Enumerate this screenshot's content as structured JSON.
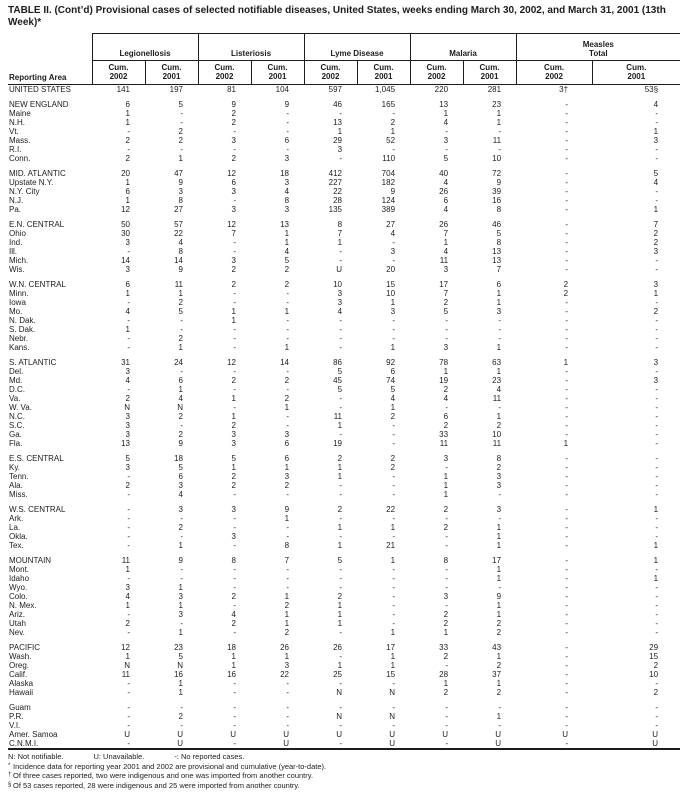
{
  "title": "TABLE II. (Cont’d) Provisional cases of selected notifiable diseases, United States, weeks ending March 30, 2002, and March 31, 2001 (13th Week)*",
  "table": {
    "area_header": "Reporting Area",
    "cum_2002": "Cum.\n2002",
    "cum_2001": "Cum.\n2001",
    "groups": [
      {
        "label": "Legionellosis"
      },
      {
        "label": "Listeriosis"
      },
      {
        "label": "Lyme Disease"
      },
      {
        "label": "Malaria"
      },
      {
        "label": "Measles\nTotal"
      }
    ],
    "rows": [
      {
        "area": "UNITED STATES",
        "gap": false,
        "values": [
          "141",
          "197",
          "81",
          "104",
          "597",
          "1,045",
          "220",
          "281",
          "3†",
          "53§"
        ]
      },
      {
        "area": "NEW ENGLAND",
        "gap": true,
        "values": [
          "6",
          "5",
          "9",
          "9",
          "46",
          "165",
          "13",
          "23",
          "-",
          "4"
        ]
      },
      {
        "area": "Maine",
        "gap": false,
        "values": [
          "1",
          "-",
          "2",
          "-",
          "-",
          "-",
          "1",
          "1",
          "-",
          "-"
        ]
      },
      {
        "area": "N.H.",
        "gap": false,
        "values": [
          "1",
          "-",
          "2",
          "-",
          "13",
          "2",
          "4",
          "1",
          "-",
          "-"
        ]
      },
      {
        "area": "Vt.",
        "gap": false,
        "values": [
          "-",
          "2",
          "-",
          "-",
          "1",
          "1",
          "-",
          "-",
          "-",
          "1"
        ]
      },
      {
        "area": "Mass.",
        "gap": false,
        "values": [
          "2",
          "2",
          "3",
          "6",
          "29",
          "52",
          "3",
          "11",
          "-",
          "3"
        ]
      },
      {
        "area": "R.I.",
        "gap": false,
        "values": [
          "-",
          "-",
          "-",
          "-",
          "3",
          "-",
          "-",
          "-",
          "-",
          "-"
        ]
      },
      {
        "area": "Conn.",
        "gap": false,
        "values": [
          "2",
          "1",
          "2",
          "3",
          "-",
          "110",
          "5",
          "10",
          "-",
          "-"
        ]
      },
      {
        "area": "MID. ATLANTIC",
        "gap": true,
        "values": [
          "20",
          "47",
          "12",
          "18",
          "412",
          "704",
          "40",
          "72",
          "-",
          "5"
        ]
      },
      {
        "area": "Upstate N.Y.",
        "gap": false,
        "values": [
          "1",
          "9",
          "6",
          "3",
          "227",
          "182",
          "4",
          "9",
          "-",
          "4"
        ]
      },
      {
        "area": "N.Y. City",
        "gap": false,
        "values": [
          "6",
          "3",
          "3",
          "4",
          "22",
          "9",
          "26",
          "39",
          "-",
          "-"
        ]
      },
      {
        "area": "N.J.",
        "gap": false,
        "values": [
          "1",
          "8",
          "-",
          "8",
          "28",
          "124",
          "6",
          "16",
          "-",
          "-"
        ]
      },
      {
        "area": "Pa.",
        "gap": false,
        "values": [
          "12",
          "27",
          "3",
          "3",
          "135",
          "389",
          "4",
          "8",
          "-",
          "1"
        ]
      },
      {
        "area": "E.N. CENTRAL",
        "gap": true,
        "values": [
          "50",
          "57",
          "12",
          "13",
          "8",
          "27",
          "26",
          "46",
          "-",
          "7"
        ]
      },
      {
        "area": "Ohio",
        "gap": false,
        "values": [
          "30",
          "22",
          "7",
          "1",
          "7",
          "4",
          "7",
          "5",
          "-",
          "2"
        ]
      },
      {
        "area": "Ind.",
        "gap": false,
        "values": [
          "3",
          "4",
          "-",
          "1",
          "1",
          "-",
          "1",
          "8",
          "-",
          "2"
        ]
      },
      {
        "area": "Ill.",
        "gap": false,
        "values": [
          "-",
          "8",
          "-",
          "4",
          "-",
          "3",
          "4",
          "13",
          "-",
          "3"
        ]
      },
      {
        "area": "Mich.",
        "gap": false,
        "values": [
          "14",
          "14",
          "3",
          "5",
          "-",
          "-",
          "11",
          "13",
          "-",
          "-"
        ]
      },
      {
        "area": "Wis.",
        "gap": false,
        "values": [
          "3",
          "9",
          "2",
          "2",
          "U",
          "20",
          "3",
          "7",
          "-",
          "-"
        ]
      },
      {
        "area": "W.N. CENTRAL",
        "gap": true,
        "values": [
          "6",
          "11",
          "2",
          "2",
          "10",
          "15",
          "17",
          "6",
          "2",
          "3"
        ]
      },
      {
        "area": "Minn.",
        "gap": false,
        "values": [
          "1",
          "1",
          "-",
          "-",
          "3",
          "10",
          "7",
          "1",
          "2",
          "1"
        ]
      },
      {
        "area": "Iowa",
        "gap": false,
        "values": [
          "-",
          "2",
          "-",
          "-",
          "3",
          "1",
          "2",
          "1",
          "-",
          "-"
        ]
      },
      {
        "area": "Mo.",
        "gap": false,
        "values": [
          "4",
          "5",
          "1",
          "1",
          "4",
          "3",
          "5",
          "3",
          "-",
          "2"
        ]
      },
      {
        "area": "N. Dak.",
        "gap": false,
        "values": [
          "-",
          "-",
          "1",
          "-",
          "-",
          "-",
          "-",
          "-",
          "-",
          "-"
        ]
      },
      {
        "area": "S. Dak.",
        "gap": false,
        "values": [
          "1",
          "-",
          "-",
          "-",
          "-",
          "-",
          "-",
          "-",
          "-",
          "-"
        ]
      },
      {
        "area": "Nebr.",
        "gap": false,
        "values": [
          "-",
          "2",
          "-",
          "-",
          "-",
          "-",
          "-",
          "-",
          "-",
          "-"
        ]
      },
      {
        "area": "Kans.",
        "gap": false,
        "values": [
          "-",
          "1",
          "-",
          "1",
          "-",
          "1",
          "3",
          "1",
          "-",
          "-"
        ]
      },
      {
        "area": "S. ATLANTIC",
        "gap": true,
        "values": [
          "31",
          "24",
          "12",
          "14",
          "86",
          "92",
          "78",
          "63",
          "1",
          "3"
        ]
      },
      {
        "area": "Del.",
        "gap": false,
        "values": [
          "3",
          "-",
          "-",
          "-",
          "5",
          "6",
          "1",
          "1",
          "-",
          "-"
        ]
      },
      {
        "area": "Md.",
        "gap": false,
        "values": [
          "4",
          "6",
          "2",
          "2",
          "45",
          "74",
          "19",
          "23",
          "-",
          "3"
        ]
      },
      {
        "area": "D.C.",
        "gap": false,
        "values": [
          "-",
          "1",
          "-",
          "-",
          "5",
          "5",
          "2",
          "4",
          "-",
          "-"
        ]
      },
      {
        "area": "Va.",
        "gap": false,
        "values": [
          "2",
          "4",
          "1",
          "2",
          "-",
          "4",
          "4",
          "11",
          "-",
          "-"
        ]
      },
      {
        "area": "W. Va.",
        "gap": false,
        "values": [
          "N",
          "N",
          "-",
          "1",
          "-",
          "1",
          "-",
          "-",
          "-",
          "-"
        ]
      },
      {
        "area": "N.C.",
        "gap": false,
        "values": [
          "3",
          "2",
          "1",
          "-",
          "11",
          "2",
          "6",
          "1",
          "-",
          "-"
        ]
      },
      {
        "area": "S.C.",
        "gap": false,
        "values": [
          "3",
          "-",
          "2",
          "-",
          "1",
          "-",
          "2",
          "2",
          "-",
          "-"
        ]
      },
      {
        "area": "Ga.",
        "gap": false,
        "values": [
          "3",
          "2",
          "3",
          "3",
          "-",
          "-",
          "33",
          "10",
          "-",
          "-"
        ]
      },
      {
        "area": "Fla.",
        "gap": false,
        "values": [
          "13",
          "9",
          "3",
          "6",
          "19",
          "-",
          "11",
          "11",
          "1",
          "-"
        ]
      },
      {
        "area": "E.S. CENTRAL",
        "gap": true,
        "values": [
          "5",
          "18",
          "5",
          "6",
          "2",
          "2",
          "3",
          "8",
          "-",
          "-"
        ]
      },
      {
        "area": "Ky.",
        "gap": false,
        "values": [
          "3",
          "5",
          "1",
          "1",
          "1",
          "2",
          "-",
          "2",
          "-",
          "-"
        ]
      },
      {
        "area": "Tenn.",
        "gap": false,
        "values": [
          "-",
          "6",
          "2",
          "3",
          "1",
          "-",
          "1",
          "3",
          "-",
          "-"
        ]
      },
      {
        "area": "Ala.",
        "gap": false,
        "values": [
          "2",
          "3",
          "2",
          "2",
          "-",
          "-",
          "1",
          "3",
          "-",
          "-"
        ]
      },
      {
        "area": "Miss.",
        "gap": false,
        "values": [
          "-",
          "4",
          "-",
          "-",
          "-",
          "-",
          "1",
          "-",
          "-",
          "-"
        ]
      },
      {
        "area": "W.S. CENTRAL",
        "gap": true,
        "values": [
          "-",
          "3",
          "3",
          "9",
          "2",
          "22",
          "2",
          "3",
          "-",
          "1"
        ]
      },
      {
        "area": "Ark.",
        "gap": false,
        "values": [
          "-",
          "-",
          "-",
          "1",
          "-",
          "-",
          "-",
          "-",
          "-",
          "-"
        ]
      },
      {
        "area": "La.",
        "gap": false,
        "values": [
          "-",
          "2",
          "-",
          "-",
          "1",
          "1",
          "2",
          "1",
          "-",
          "-"
        ]
      },
      {
        "area": "Okla.",
        "gap": false,
        "values": [
          "-",
          "-",
          "3",
          "-",
          "-",
          "-",
          "-",
          "1",
          "-",
          "-"
        ]
      },
      {
        "area": "Tex.",
        "gap": false,
        "values": [
          "-",
          "1",
          "-",
          "8",
          "1",
          "21",
          "-",
          "1",
          "-",
          "1"
        ]
      },
      {
        "area": "MOUNTAIN",
        "gap": true,
        "values": [
          "11",
          "9",
          "8",
          "7",
          "5",
          "1",
          "8",
          "17",
          "-",
          "1"
        ]
      },
      {
        "area": "Mont.",
        "gap": false,
        "values": [
          "1",
          "-",
          "-",
          "-",
          "-",
          "-",
          "-",
          "1",
          "-",
          "-"
        ]
      },
      {
        "area": "Idaho",
        "gap": false,
        "values": [
          "-",
          "-",
          "-",
          "-",
          "-",
          "-",
          "-",
          "1",
          "-",
          "1"
        ]
      },
      {
        "area": "Wyo.",
        "gap": false,
        "values": [
          "3",
          "1",
          "-",
          "-",
          "-",
          "-",
          "-",
          "-",
          "-",
          "-"
        ]
      },
      {
        "area": "Colo.",
        "gap": false,
        "values": [
          "4",
          "3",
          "2",
          "1",
          "2",
          "-",
          "3",
          "9",
          "-",
          "-"
        ]
      },
      {
        "area": "N. Mex.",
        "gap": false,
        "values": [
          "1",
          "1",
          "-",
          "2",
          "1",
          "-",
          "-",
          "1",
          "-",
          "-"
        ]
      },
      {
        "area": "Ariz.",
        "gap": false,
        "values": [
          "-",
          "3",
          "4",
          "1",
          "1",
          "-",
          "2",
          "1",
          "-",
          "-"
        ]
      },
      {
        "area": "Utah",
        "gap": false,
        "values": [
          "2",
          "-",
          "2",
          "1",
          "1",
          "-",
          "2",
          "2",
          "-",
          "-"
        ]
      },
      {
        "area": "Nev.",
        "gap": false,
        "values": [
          "-",
          "1",
          "-",
          "2",
          "-",
          "1",
          "1",
          "2",
          "-",
          "-"
        ]
      },
      {
        "area": "PACIFIC",
        "gap": true,
        "values": [
          "12",
          "23",
          "18",
          "26",
          "26",
          "17",
          "33",
          "43",
          "-",
          "29"
        ]
      },
      {
        "area": "Wash.",
        "gap": false,
        "values": [
          "1",
          "5",
          "1",
          "1",
          "-",
          "1",
          "2",
          "1",
          "-",
          "15"
        ]
      },
      {
        "area": "Oreg.",
        "gap": false,
        "values": [
          "N",
          "N",
          "1",
          "3",
          "1",
          "1",
          "-",
          "2",
          "-",
          "2"
        ]
      },
      {
        "area": "Calif.",
        "gap": false,
        "values": [
          "11",
          "16",
          "16",
          "22",
          "25",
          "15",
          "28",
          "37",
          "-",
          "10"
        ]
      },
      {
        "area": "Alaska",
        "gap": false,
        "values": [
          "-",
          "1",
          "-",
          "-",
          "-",
          "-",
          "1",
          "1",
          "-",
          "-"
        ]
      },
      {
        "area": "Hawaii",
        "gap": false,
        "values": [
          "-",
          "1",
          "-",
          "-",
          "N",
          "N",
          "2",
          "2",
          "-",
          "2"
        ]
      },
      {
        "area": "Guam",
        "gap": true,
        "values": [
          "-",
          "-",
          "-",
          "-",
          "-",
          "-",
          "-",
          "-",
          "-",
          "-"
        ]
      },
      {
        "area": "P.R.",
        "gap": false,
        "values": [
          "-",
          "2",
          "-",
          "-",
          "N",
          "N",
          "-",
          "1",
          "-",
          "-"
        ]
      },
      {
        "area": "V.I.",
        "gap": false,
        "values": [
          "-",
          "-",
          "-",
          "-",
          "-",
          "-",
          "-",
          "-",
          "-",
          "-"
        ]
      },
      {
        "area": "Amer. Samoa",
        "gap": false,
        "values": [
          "U",
          "U",
          "U",
          "U",
          "U",
          "U",
          "U",
          "U",
          "U",
          "U"
        ]
      },
      {
        "area": "C.N.M.I.",
        "gap": false,
        "values": [
          "-",
          "U",
          "-",
          "U",
          "-",
          "U",
          "-",
          "U",
          "-",
          "U"
        ]
      }
    ]
  },
  "legend": {
    "n": "N: Not notifiable.",
    "u": "U: Unavailable.",
    "dash": "-: No reported cases."
  },
  "footnotes": [
    {
      "marker": "*",
      "text": "Incidence data for reporting year 2001 and 2002 are provisional and cumulative (year-to-date)."
    },
    {
      "marker": "†",
      "text": "Of three cases reported, two were indigenous and one was imported from another country."
    },
    {
      "marker": "§",
      "text": "Of 53 cases reported, 28 were indigenous and 25 were imported from another country."
    }
  ]
}
